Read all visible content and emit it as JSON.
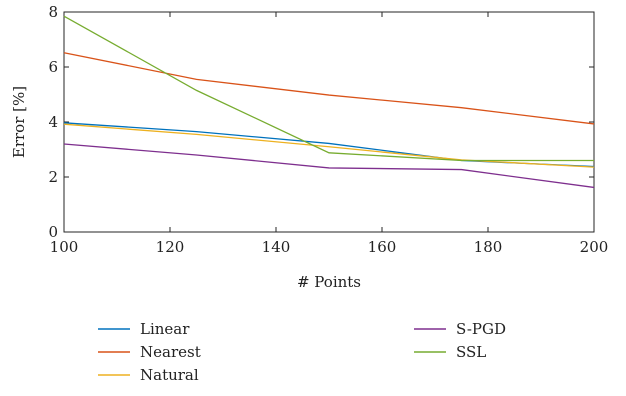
{
  "chart_data": {
    "type": "line",
    "title": "",
    "xlabel": "# Points",
    "ylabel": "Error [%]",
    "xlim": [
      100,
      200
    ],
    "ylim": [
      0,
      8
    ],
    "xticks": [
      100,
      120,
      140,
      160,
      180,
      200
    ],
    "yticks": [
      0,
      2,
      4,
      6,
      8
    ],
    "xtick_labels": [
      "100",
      "120",
      "140",
      "160",
      "180",
      "200"
    ],
    "ytick_labels": [
      "0",
      "2",
      "4",
      "6",
      "8"
    ],
    "grid": false,
    "legend_position": "bottom",
    "series": [
      {
        "name": "Linear",
        "color": "#0072BD",
        "x": [
          100,
          125,
          150,
          175,
          200
        ],
        "y": [
          3.97,
          3.65,
          3.22,
          2.6,
          2.38
        ]
      },
      {
        "name": "Nearest",
        "color": "#D95319",
        "x": [
          100,
          125,
          150,
          175,
          200
        ],
        "y": [
          6.52,
          5.55,
          4.98,
          4.52,
          3.93
        ]
      },
      {
        "name": "Natural",
        "color": "#EDB120",
        "x": [
          100,
          125,
          150,
          175,
          200
        ],
        "y": [
          3.92,
          3.55,
          3.1,
          2.62,
          2.36
        ]
      },
      {
        "name": "S-PGD",
        "color": "#7E2F8E",
        "x": [
          100,
          125,
          150,
          175,
          200
        ],
        "y": [
          3.2,
          2.8,
          2.33,
          2.27,
          1.62
        ]
      },
      {
        "name": "SSL",
        "color": "#77AC30",
        "x": [
          100,
          125,
          150,
          175,
          200
        ],
        "y": [
          7.85,
          5.15,
          2.88,
          2.6,
          2.6
        ]
      }
    ]
  }
}
